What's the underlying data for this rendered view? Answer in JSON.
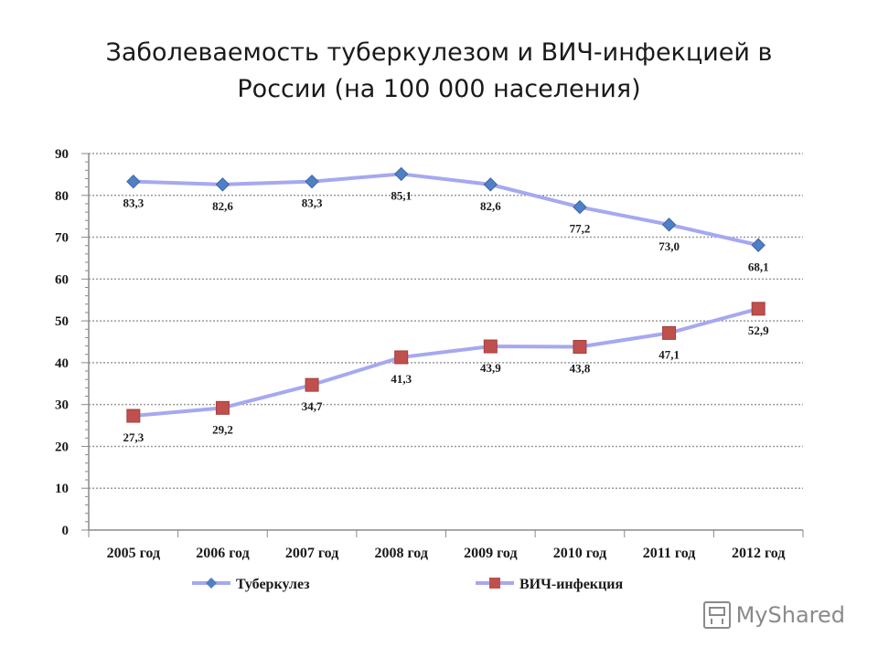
{
  "slide": {
    "title_line1": "Заболеваемость туберкулезом и ВИЧ-инфекцией в",
    "title_line2": "России (на 100 000 населения)"
  },
  "watermark": {
    "text": "MyShared",
    "icon": "presentation-board-icon"
  },
  "chart_data": {
    "type": "line",
    "title": "",
    "xlabel": "",
    "ylabel": "",
    "categories": [
      "2005 год",
      "2006 год",
      "2007 год",
      "2008 год",
      "2009 год",
      "2010 год",
      "2011 год",
      "2012 год"
    ],
    "ylim": [
      0,
      90
    ],
    "yticks": [
      0,
      10,
      20,
      30,
      40,
      50,
      60,
      70,
      80,
      90
    ],
    "grid": true,
    "legend_position": "bottom",
    "series": [
      {
        "name": "Туберкулез",
        "values": [
          83.3,
          82.6,
          83.3,
          85.1,
          82.6,
          77.2,
          73.0,
          68.1
        ],
        "labels": [
          "83,3",
          "82,6",
          "83,3",
          "85,1",
          "82,6",
          "77,2",
          "73,0",
          "68,1"
        ],
        "line_color": "#a6a8f0",
        "marker_color": "#4f7fc4",
        "marker": "diamond",
        "label_position": "below"
      },
      {
        "name": "ВИЧ-инфекция",
        "values": [
          27.3,
          29.2,
          34.7,
          41.3,
          43.9,
          43.8,
          47.1,
          52.9
        ],
        "labels": [
          "27,3",
          "29,2",
          "34,7",
          "41,3",
          "43,9",
          "43,8",
          "47,1",
          "52,9"
        ],
        "line_color": "#a6a8f0",
        "marker_color": "#c0504d",
        "marker": "square",
        "label_position": "below"
      }
    ]
  }
}
